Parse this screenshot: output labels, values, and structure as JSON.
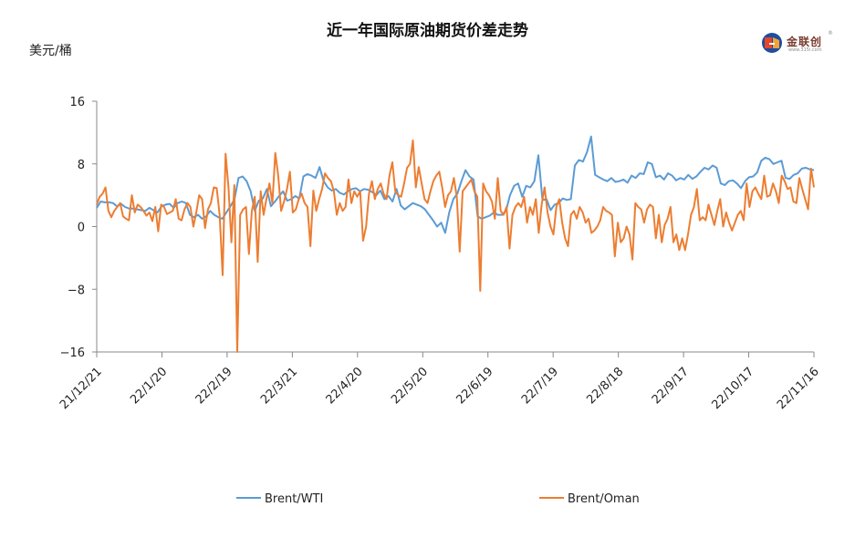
{
  "title": "近一年国际原油期货价差走势",
  "unit": "美元/桶",
  "logo": {
    "name": "金联创",
    "site": "www.315i.com",
    "registered": "®"
  },
  "chart_data": {
    "type": "line",
    "ylim": [
      -16,
      16
    ],
    "yticks": [
      16,
      8,
      0,
      -8,
      -16
    ],
    "x_tick_labels": [
      "21/12/21",
      "22/1/20",
      "22/2/19",
      "22/3/21",
      "22/4/20",
      "22/5/20",
      "22/6/19",
      "22/7/19",
      "22/8/18",
      "22/9/17",
      "22/10/17",
      "22/11/16"
    ],
    "grid": false,
    "legend_position": "bottom",
    "series": [
      {
        "name": "Brent/WTI",
        "color": "#5b9bd5",
        "values": [
          2.4,
          3.2,
          3.1,
          3.1,
          3.0,
          2.6,
          2.9,
          2.5,
          2.3,
          2.3,
          2.2,
          2.1,
          2.0,
          2.4,
          2.1,
          1.8,
          2.6,
          2.8,
          2.9,
          2.4,
          3.0,
          3.2,
          3.0,
          1.5,
          1.2,
          1.5,
          1.0,
          1.3,
          2.0,
          1.5,
          1.2,
          1.0,
          1.8,
          2.6,
          3.5,
          6.2,
          6.4,
          5.8,
          4.5,
          2.0,
          3.3,
          3.6,
          4.8,
          2.6,
          3.2,
          3.9,
          4.5,
          3.3,
          3.5,
          3.9,
          3.6,
          6.4,
          6.7,
          6.5,
          6.2,
          7.6,
          5.8,
          5.0,
          4.6,
          4.8,
          4.3,
          4.1,
          4.5,
          4.8,
          4.9,
          4.5,
          4.8,
          4.7,
          4.4,
          4.0,
          4.6,
          3.5,
          3.9,
          3.2,
          4.8,
          2.7,
          2.2,
          2.6,
          3.0,
          2.8,
          2.6,
          2.2,
          1.5,
          0.8,
          0.0,
          0.5,
          -0.8,
          1.8,
          3.5,
          4.2,
          5.8,
          7.2,
          6.4,
          6.0,
          1.3,
          1.0,
          1.2,
          1.4,
          1.8,
          1.5,
          1.5,
          2.0,
          4.0,
          5.2,
          5.5,
          3.8,
          5.2,
          5.0,
          5.8,
          9.1,
          3.4,
          3.5,
          2.1,
          2.8,
          3.0,
          3.6,
          3.4,
          3.5,
          7.8,
          8.5,
          8.3,
          9.5,
          11.5,
          6.6,
          6.3,
          6.0,
          5.8,
          6.2,
          5.7,
          5.8,
          6.0,
          5.6,
          6.5,
          6.2,
          6.8,
          6.7,
          8.2,
          8.0,
          6.3,
          6.5,
          6.0,
          6.8,
          6.5,
          5.9,
          6.2,
          6.0,
          6.6,
          6.1,
          6.4,
          7.0,
          7.5,
          7.3,
          7.8,
          7.5,
          5.5,
          5.3,
          5.8,
          5.9,
          5.5,
          4.9,
          5.8,
          6.3,
          6.4,
          6.9,
          8.4,
          8.8,
          8.6,
          8.0,
          8.2,
          8.4,
          6.2,
          6.1,
          6.6,
          6.8,
          7.4,
          7.5,
          7.3,
          7.2
        ]
      },
      {
        "name": "Brent/Oman",
        "color": "#ed7d31",
        "values": [
          2.8,
          3.8,
          4.2,
          5.0,
          2.0,
          1.2,
          2.0,
          2.5,
          3.0,
          1.3,
          1.0,
          0.8,
          4.0,
          1.8,
          2.8,
          2.5,
          2.0,
          1.4,
          1.8,
          0.7,
          2.5,
          -0.6,
          2.8,
          2.5,
          1.6,
          1.8,
          2.0,
          3.5,
          1.0,
          0.8,
          2.2,
          3.0,
          2.5,
          0.0,
          1.8,
          4.0,
          3.5,
          -0.2,
          2.2,
          3.0,
          5.0,
          4.9,
          1.5,
          -6.2,
          9.3,
          5.0,
          -2.0,
          5.3,
          -16.0,
          1.5,
          2.2,
          2.5,
          -3.5,
          2.0,
          3.8,
          -4.5,
          4.5,
          1.5,
          3.6,
          5.5,
          3.0,
          9.4,
          6.5,
          2.0,
          3.2,
          4.8,
          7.0,
          1.8,
          2.2,
          3.5,
          4.2,
          3.0,
          2.5,
          -2.5,
          4.6,
          2.0,
          3.5,
          4.8,
          6.8,
          6.2,
          5.8,
          4.5,
          1.5,
          3.0,
          2.0,
          2.5,
          6.0,
          3.0,
          4.5,
          3.8,
          4.5,
          -1.8,
          0.0,
          4.2,
          5.8,
          3.5,
          4.8,
          5.5,
          4.2,
          3.5,
          6.5,
          8.2,
          4.5,
          4.0,
          3.8,
          5.5,
          7.5,
          8.0,
          11.0,
          5.0,
          7.6,
          5.5,
          3.5,
          3.0,
          4.5,
          5.8,
          6.5,
          7.0,
          5.0,
          2.5,
          4.0,
          4.5,
          6.2,
          3.8,
          -3.2,
          4.5,
          5.0,
          5.5,
          6.0,
          4.5,
          3.8,
          -8.2,
          5.5,
          4.5,
          4.0,
          3.2,
          1.0,
          6.2,
          2.0,
          1.5,
          2.5,
          -2.8,
          1.5,
          2.5,
          3.0,
          2.5,
          3.8,
          0.5,
          2.5,
          1.5,
          3.5,
          -0.8,
          2.8,
          5.0,
          1.8,
          0.0,
          -1.0,
          2.5,
          3.5,
          0.5,
          -1.5,
          -2.5,
          1.5,
          2.0,
          1.0,
          2.5,
          1.8,
          0.5,
          1.0,
          -0.8,
          -0.5,
          0.0,
          0.8,
          2.5,
          2.0,
          1.8,
          1.5,
          -3.8,
          0.5,
          -2.0,
          -1.5,
          0.0,
          -1.0,
          -4.2,
          3.0,
          2.5,
          2.2,
          0.5,
          2.2,
          2.8,
          2.5,
          -1.5,
          1.5,
          -2.0,
          0.2,
          1.0,
          2.5,
          -2.0,
          -1.0,
          -3.0,
          -1.5,
          -3.0,
          -1.0,
          1.5,
          2.5,
          4.8,
          0.8,
          1.2,
          0.8,
          2.8,
          1.5,
          0.2,
          2.0,
          3.5,
          0.0,
          1.8,
          0.5,
          -0.5,
          0.5,
          1.5,
          2.0,
          0.8,
          5.5,
          2.5,
          4.5,
          5.0,
          4.2,
          3.5,
          6.5,
          3.8,
          4.0,
          5.5,
          4.5,
          3.0,
          6.5,
          5.8,
          4.8,
          5.0,
          3.2,
          3.0,
          6.2,
          4.8,
          3.5,
          2.2,
          7.4,
          5.0
        ]
      }
    ]
  }
}
